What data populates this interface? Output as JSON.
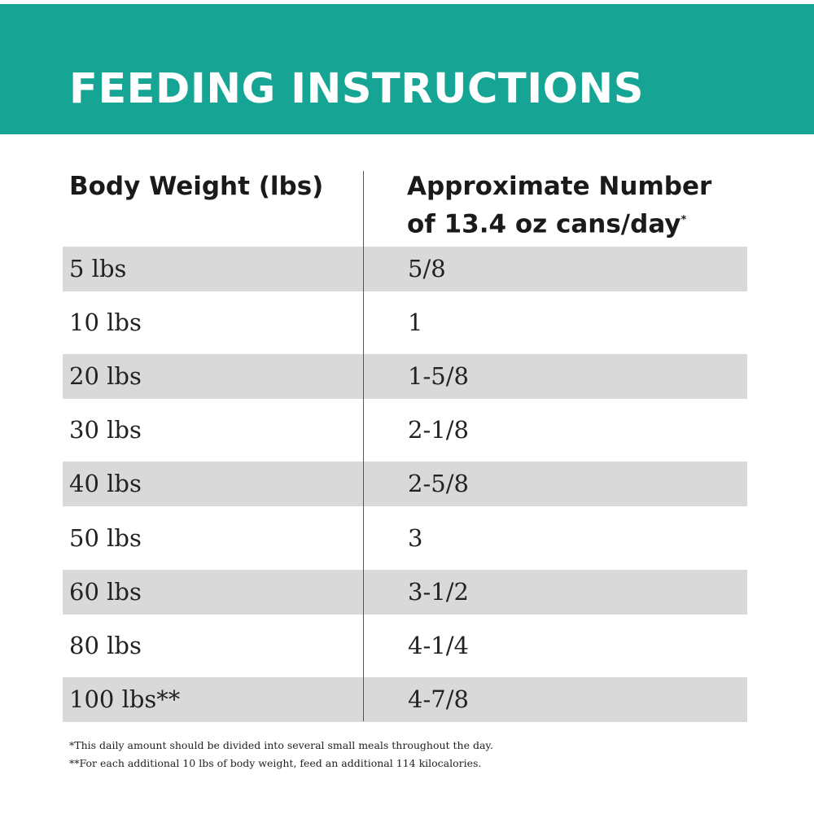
{
  "header": {
    "title": "FEEDING INSTRUCTIONS"
  },
  "table": {
    "columns": [
      "Body Weight (lbs)",
      [
        "Approximate Number",
        "of 13.4 oz cans/day"
      ]
    ],
    "column_note_mark": "*",
    "rows": [
      [
        "5 lbs",
        "5/8"
      ],
      [
        "10 lbs",
        "1"
      ],
      [
        "20 lbs",
        "1-5/8"
      ],
      [
        "30 lbs",
        "2-1/8"
      ],
      [
        "40 lbs",
        "2-5/8"
      ],
      [
        "50 lbs",
        "3"
      ],
      [
        "60 lbs",
        "3-1/2"
      ],
      [
        "80 lbs",
        "4-1/4"
      ],
      [
        "100 lbs**",
        "4-7/8"
      ]
    ]
  },
  "footnotes": [
    "*This daily amount should be divided into several small meals throughout the day.",
    "**For each additional 10 lbs of body weight, feed an additional 114 kilocalories."
  ]
}
